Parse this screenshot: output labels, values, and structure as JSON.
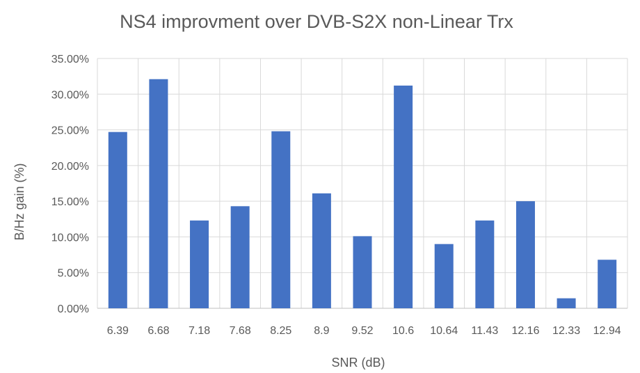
{
  "chart_data": {
    "type": "bar",
    "title": "NS4 improvment over DVB-S2X non-Linear Trx",
    "xlabel": "SNR (dB)",
    "ylabel": "B/Hz gain (%)",
    "categories": [
      "6.39",
      "6.68",
      "7.18",
      "7.68",
      "8.25",
      "8.9",
      "9.52",
      "10.6",
      "10.64",
      "11.43",
      "12.16",
      "12.33",
      "12.94"
    ],
    "values": [
      24.7,
      32.1,
      12.3,
      14.3,
      24.8,
      16.1,
      10.1,
      31.2,
      9.0,
      12.3,
      15.0,
      1.4,
      6.8
    ],
    "ylim": [
      0,
      35
    ],
    "yticks": [
      "0.00%",
      "5.00%",
      "10.00%",
      "15.00%",
      "20.00%",
      "25.00%",
      "30.00%",
      "35.00%"
    ],
    "grid": "both",
    "legend": "none",
    "bar_color": "#4472c4"
  }
}
